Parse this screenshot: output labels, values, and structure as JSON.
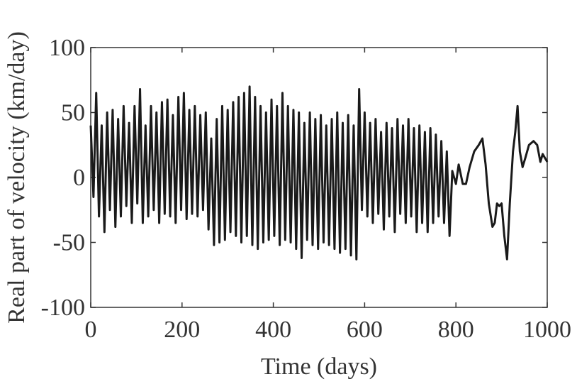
{
  "chart_data": {
    "type": "line",
    "xlabel": "Time (days)",
    "ylabel": "Real part of velocity (km/day)",
    "xlim": [
      0,
      1000
    ],
    "ylim": [
      -100,
      100
    ],
    "xticks": [
      0,
      200,
      400,
      600,
      800,
      1000
    ],
    "yticks": [
      -100,
      -50,
      0,
      50,
      100
    ],
    "grid": false,
    "series": [
      {
        "color": "#1a1a1a",
        "x": [
          0,
          6,
          12,
          18,
          24,
          30,
          36,
          42,
          48,
          54,
          60,
          66,
          72,
          78,
          84,
          90,
          96,
          102,
          108,
          114,
          120,
          126,
          132,
          138,
          144,
          150,
          156,
          162,
          168,
          174,
          180,
          186,
          192,
          198,
          204,
          210,
          216,
          222,
          228,
          234,
          240,
          246,
          252,
          258,
          264,
          270,
          276,
          282,
          288,
          294,
          300,
          306,
          312,
          318,
          324,
          330,
          336,
          342,
          348,
          354,
          360,
          366,
          372,
          378,
          384,
          390,
          396,
          402,
          408,
          414,
          420,
          426,
          432,
          438,
          444,
          450,
          456,
          462,
          468,
          474,
          480,
          486,
          492,
          498,
          504,
          510,
          516,
          522,
          528,
          534,
          540,
          546,
          552,
          558,
          564,
          570,
          576,
          582,
          588,
          594,
          600,
          606,
          612,
          618,
          624,
          630,
          636,
          642,
          648,
          654,
          660,
          666,
          672,
          678,
          684,
          690,
          696,
          702,
          708,
          714,
          720,
          726,
          732,
          738,
          744,
          750,
          756,
          762,
          768,
          774,
          780,
          786,
          792,
          800,
          806,
          815,
          822,
          830,
          840,
          850,
          858,
          865,
          872,
          880,
          885,
          890,
          895,
          900,
          906,
          912,
          918,
          925,
          930,
          935,
          940,
          946,
          952,
          960,
          970,
          978,
          985,
          990,
          995,
          1000
        ],
        "values": [
          40,
          -15,
          65,
          -30,
          40,
          -42,
          50,
          -25,
          52,
          -38,
          45,
          -30,
          55,
          -22,
          42,
          -35,
          55,
          -20,
          68,
          -35,
          40,
          -30,
          55,
          -25,
          50,
          -35,
          58,
          -28,
          60,
          -30,
          48,
          -35,
          62,
          -25,
          65,
          -32,
          52,
          -28,
          55,
          -30,
          48,
          -25,
          50,
          -40,
          30,
          -52,
          45,
          -50,
          55,
          -48,
          52,
          -42,
          58,
          -45,
          62,
          -50,
          65,
          -45,
          70,
          -52,
          62,
          -55,
          55,
          -50,
          50,
          -48,
          60,
          -45,
          55,
          -52,
          65,
          -48,
          55,
          -50,
          52,
          -55,
          50,
          -62,
          42,
          -48,
          50,
          -52,
          45,
          -55,
          48,
          -50,
          40,
          -52,
          45,
          -55,
          50,
          -58,
          42,
          -55,
          48,
          -60,
          40,
          -63,
          68,
          -25,
          50,
          -30,
          42,
          -35,
          45,
          -28,
          35,
          -40,
          42,
          -30,
          38,
          -42,
          45,
          -28,
          40,
          -35,
          45,
          -30,
          38,
          -42,
          40,
          -35,
          35,
          -42,
          38,
          -35,
          33,
          -30,
          28,
          -35,
          20,
          -45,
          5,
          -5,
          10,
          -5,
          -5,
          8,
          20,
          25,
          30,
          10,
          -20,
          -38,
          -35,
          -20,
          -22,
          -20,
          -45,
          -63,
          -20,
          20,
          35,
          55,
          20,
          8,
          15,
          25,
          28,
          25,
          12,
          18,
          15,
          12
        ]
      }
    ]
  }
}
